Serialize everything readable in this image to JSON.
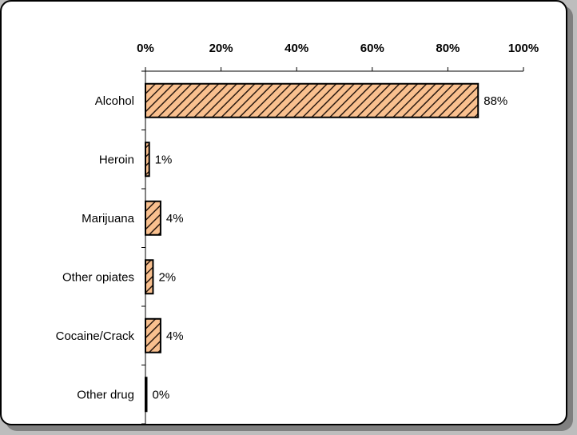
{
  "chart_data": {
    "type": "bar",
    "orientation": "horizontal",
    "categories": [
      "Alcohol",
      "Heroin",
      "Marijuana",
      "Other opiates",
      "Cocaine/Crack",
      "Other drug"
    ],
    "values": [
      88,
      1,
      4,
      2,
      4,
      0
    ],
    "value_labels": [
      "88%",
      "1%",
      "4%",
      "2%",
      "4%",
      "0%"
    ],
    "x_ticks": [
      "0%",
      "20%",
      "40%",
      "60%",
      "80%",
      "100%"
    ],
    "xlim": [
      0,
      100
    ],
    "axis_position": "top",
    "grid": false,
    "legend": "none"
  },
  "colors": {
    "bar_fill": "#f9c08f",
    "bar_hatch": "#2b1a10",
    "bar_outline": "#000000",
    "shadow": "#7f7f7f",
    "page_background": "#bdbdbd"
  }
}
